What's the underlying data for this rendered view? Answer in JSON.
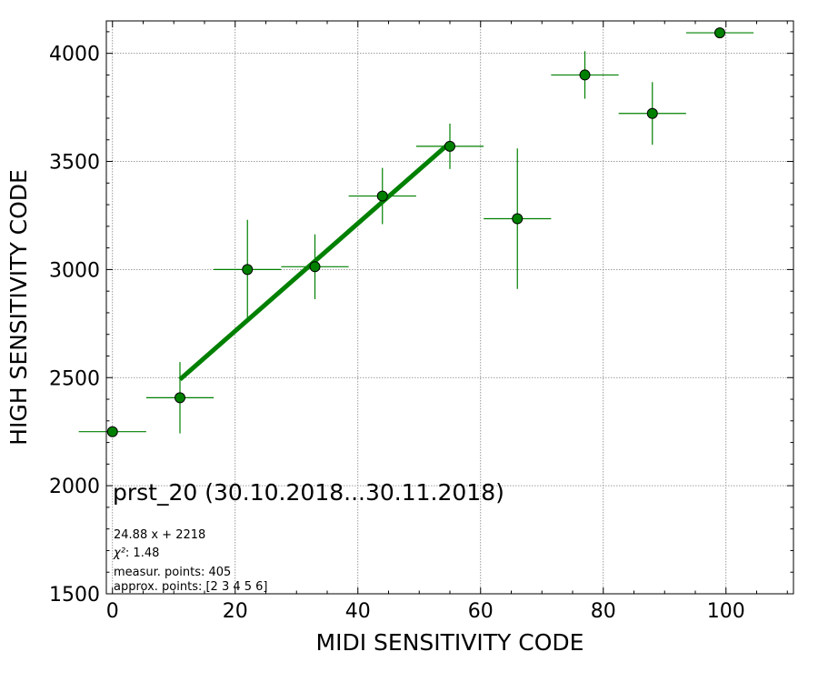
{
  "chart_data": {
    "type": "scatter",
    "xlabel": "MIDI SENSITIVITY CODE",
    "ylabel": "HIGH SENSITIVITY CODE",
    "xlim": [
      -1,
      111
    ],
    "ylim": [
      1500,
      4150
    ],
    "x_ticks": [
      0,
      20,
      40,
      60,
      80,
      100
    ],
    "y_ticks": [
      1500,
      2000,
      2500,
      3000,
      3500,
      4000
    ],
    "grid": true,
    "grid_style": "dotted",
    "colors": {
      "marker": "#008000",
      "marker_edge": "#000000",
      "errorbar": "#008000",
      "fit_line": "#008000",
      "grid": "#808080"
    },
    "points": [
      {
        "x": 0,
        "y": 2250,
        "xerr": 5.5,
        "yerr": 0
      },
      {
        "x": 11,
        "y": 2407,
        "xerr": 5.5,
        "yerr": 165
      },
      {
        "x": 22,
        "y": 3000,
        "xerr": 5.5,
        "yerr": 230
      },
      {
        "x": 33,
        "y": 3013,
        "xerr": 5.5,
        "yerr": 150
      },
      {
        "x": 44,
        "y": 3340,
        "xerr": 5.5,
        "yerr": 130
      },
      {
        "x": 55,
        "y": 3570,
        "xerr": 5.5,
        "yerr": 105
      },
      {
        "x": 66,
        "y": 3235,
        "xerr": 5.5,
        "yerr": 325
      },
      {
        "x": 77,
        "y": 3900,
        "xerr": 5.5,
        "yerr": 110
      },
      {
        "x": 88,
        "y": 3722,
        "xerr": 5.5,
        "yerr": 145
      },
      {
        "x": 99,
        "y": 4095,
        "xerr": 5.5,
        "yerr": 0
      }
    ],
    "fit": {
      "slope": 24.88,
      "intercept": 2218,
      "x_range": [
        11,
        55
      ]
    },
    "annotations": {
      "title": "prst_20 (30.10.2018...30.11.2018)",
      "equation": "24.88 x + 2218",
      "chi2_label": "χ²",
      "chi2_value": ": 1.48",
      "measur_points": "measur. points: 405",
      "approx_points": "approx. points: [2 3 4 5 6]"
    }
  }
}
